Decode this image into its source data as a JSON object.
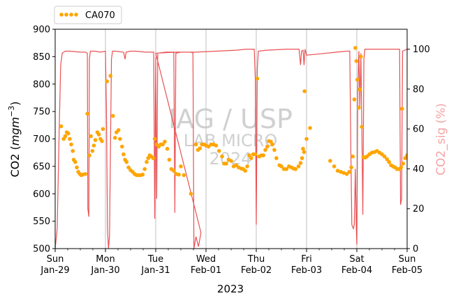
{
  "chart_data": {
    "type": "line",
    "xlabel": "2023",
    "ylabel_left": "CO2 (mgm⁻³)",
    "ylabel_left_main": "CO2 (",
    "ylabel_left_unit": "mgm",
    "ylabel_left_exp": "−3",
    "ylabel_left_close": ")",
    "ylabel_right": "CO2_sig (%)",
    "ylim_left": [
      500,
      900
    ],
    "ylim_right": [
      0,
      110
    ],
    "yticks_left": [
      500,
      550,
      600,
      650,
      700,
      750,
      800,
      850,
      900
    ],
    "yticks_right": [
      0,
      20,
      40,
      60,
      80,
      100
    ],
    "xticks": [
      {
        "day": 0,
        "line1": "Sun",
        "line2": "Jan-29"
      },
      {
        "day": 1,
        "line1": "Mon",
        "line2": "Jan-30"
      },
      {
        "day": 2,
        "line1": "Tue",
        "line2": "Jan-31"
      },
      {
        "day": 3,
        "line1": "Wed",
        "line2": "Feb-01"
      },
      {
        "day": 4,
        "line1": "Thu",
        "line2": "Feb-02"
      },
      {
        "day": 5,
        "line1": "Fri",
        "line2": "Feb-03"
      },
      {
        "day": 6,
        "line1": "Sat",
        "line2": "Feb-04"
      },
      {
        "day": 7,
        "line1": "Sun",
        "line2": "Feb-05"
      }
    ],
    "xlim": [
      0,
      7
    ],
    "grid": "vertical",
    "legend_position": "top-left-outside",
    "watermark": [
      "IAG / USP",
      "LAB MICRO",
      "2024"
    ],
    "colors": {
      "co2": "#ffa500",
      "sig": "#e8474a",
      "right_axis_label": "#f4a3a3",
      "watermark": "#c8c8c8",
      "grid": "#b0b0b0"
    },
    "series": [
      {
        "name": "CA070",
        "axis": "left",
        "style": "dots",
        "points": [
          [
            0.12,
            723
          ],
          [
            0.17,
            700
          ],
          [
            0.2,
            705
          ],
          [
            0.23,
            712
          ],
          [
            0.26,
            710
          ],
          [
            0.29,
            700
          ],
          [
            0.32,
            690
          ],
          [
            0.35,
            678
          ],
          [
            0.37,
            662
          ],
          [
            0.4,
            658
          ],
          [
            0.43,
            648
          ],
          [
            0.46,
            640
          ],
          [
            0.49,
            636
          ],
          [
            0.52,
            634
          ],
          [
            0.55,
            635
          ],
          [
            0.6,
            636
          ],
          [
            0.64,
            746
          ],
          [
            0.68,
            670
          ],
          [
            0.71,
            705
          ],
          [
            0.74,
            678
          ],
          [
            0.77,
            688
          ],
          [
            0.8,
            698
          ],
          [
            0.84,
            712
          ],
          [
            0.87,
            708
          ],
          [
            0.9,
            700
          ],
          [
            0.93,
            696
          ],
          [
            0.95,
            718
          ],
          [
            1.03,
            805
          ],
          [
            1.1,
            815
          ],
          [
            1.15,
            742
          ],
          [
            1.19,
            702
          ],
          [
            1.22,
            712
          ],
          [
            1.26,
            716
          ],
          [
            1.29,
            700
          ],
          [
            1.33,
            686
          ],
          [
            1.36,
            672
          ],
          [
            1.39,
            662
          ],
          [
            1.42,
            658
          ],
          [
            1.46,
            648
          ],
          [
            1.5,
            643
          ],
          [
            1.54,
            640
          ],
          [
            1.58,
            636
          ],
          [
            1.62,
            634
          ],
          [
            1.66,
            634
          ],
          [
            1.7,
            634
          ],
          [
            1.74,
            635
          ],
          [
            1.78,
            645
          ],
          [
            1.82,
            658
          ],
          [
            1.85,
            665
          ],
          [
            1.88,
            670
          ],
          [
            1.91,
            668
          ],
          [
            1.95,
            665
          ],
          [
            1.98,
            700
          ],
          [
            2.02,
            690
          ],
          [
            2.06,
            686
          ],
          [
            2.1,
            690
          ],
          [
            2.14,
            690
          ],
          [
            2.18,
            695
          ],
          [
            2.23,
            682
          ],
          [
            2.27,
            662
          ],
          [
            2.31,
            645
          ],
          [
            2.36,
            642
          ],
          [
            2.41,
            636
          ],
          [
            2.46,
            635
          ],
          [
            2.5,
            650
          ],
          [
            2.56,
            634
          ],
          [
            2.7,
            600
          ],
          [
            2.8,
            690
          ],
          [
            2.84,
            680
          ],
          [
            2.88,
            683
          ],
          [
            2.92,
            690
          ],
          [
            2.96,
            690
          ],
          [
            3.0,
            688
          ],
          [
            3.05,
            686
          ],
          [
            3.1,
            690
          ],
          [
            3.15,
            690
          ],
          [
            3.2,
            688
          ],
          [
            3.26,
            678
          ],
          [
            3.32,
            668
          ],
          [
            3.36,
            655
          ],
          [
            3.4,
            655
          ],
          [
            3.45,
            662
          ],
          [
            3.5,
            660
          ],
          [
            3.55,
            650
          ],
          [
            3.6,
            652
          ],
          [
            3.65,
            648
          ],
          [
            3.7,
            646
          ],
          [
            3.74,
            645
          ],
          [
            3.78,
            642
          ],
          [
            3.82,
            650
          ],
          [
            3.86,
            670
          ],
          [
            3.9,
            665
          ],
          [
            3.94,
            672
          ],
          [
            3.98,
            672
          ],
          [
            4.02,
            810
          ],
          [
            4.06,
            668
          ],
          [
            4.1,
            670
          ],
          [
            4.14,
            670
          ],
          [
            4.18,
            680
          ],
          [
            4.22,
            686
          ],
          [
            4.25,
            696
          ],
          [
            4.29,
            695
          ],
          [
            4.32,
            690
          ],
          [
            4.36,
            680
          ],
          [
            4.4,
            665
          ],
          [
            4.46,
            652
          ],
          [
            4.5,
            650
          ],
          [
            4.55,
            645
          ],
          [
            4.6,
            645
          ],
          [
            4.65,
            650
          ],
          [
            4.7,
            648
          ],
          [
            4.74,
            646
          ],
          [
            4.78,
            645
          ],
          [
            4.84,
            650
          ],
          [
            4.88,
            656
          ],
          [
            4.91,
            665
          ],
          [
            4.93,
            682
          ],
          [
            4.95,
            676
          ],
          [
            4.96,
            787
          ],
          [
            5.0,
            700
          ],
          [
            5.07,
            720
          ],
          [
            5.47,
            660
          ],
          [
            5.55,
            650
          ],
          [
            5.62,
            642
          ],
          [
            5.68,
            640
          ],
          [
            5.74,
            638
          ],
          [
            5.8,
            636
          ],
          [
            5.85,
            640
          ],
          [
            5.89,
            648
          ],
          [
            5.92,
            668
          ],
          [
            5.95,
            772
          ],
          [
            5.97,
            866
          ],
          [
            5.99,
            842
          ],
          [
            6.01,
            808
          ],
          [
            6.04,
            757
          ],
          [
            6.06,
            790
          ],
          [
            6.08,
            850
          ],
          [
            6.1,
            722
          ],
          [
            6.13,
            667
          ],
          [
            6.17,
            666
          ],
          [
            6.2,
            668
          ],
          [
            6.25,
            672
          ],
          [
            6.3,
            675
          ],
          [
            6.35,
            676
          ],
          [
            6.4,
            678
          ],
          [
            6.45,
            675
          ],
          [
            6.5,
            672
          ],
          [
            6.55,
            668
          ],
          [
            6.6,
            663
          ],
          [
            6.64,
            658
          ],
          [
            6.68,
            652
          ],
          [
            6.72,
            650
          ],
          [
            6.76,
            648
          ],
          [
            6.8,
            645
          ],
          [
            6.84,
            645
          ],
          [
            6.88,
            648
          ],
          [
            6.9,
            755
          ],
          [
            6.92,
            655
          ],
          [
            6.96,
            665
          ],
          [
            7.0,
            670
          ],
          [
            7.04,
            675
          ],
          [
            7.08,
            678
          ]
        ]
      },
      {
        "name": "CO2_sig",
        "axis": "right",
        "style": "line",
        "points": [
          [
            0.0,
            0
          ],
          [
            0.04,
            10
          ],
          [
            0.08,
            60
          ],
          [
            0.11,
            92
          ],
          [
            0.14,
            98
          ],
          [
            0.2,
            99
          ],
          [
            0.3,
            99
          ],
          [
            0.5,
            98.5
          ],
          [
            0.6,
            98.5
          ],
          [
            0.64,
            98
          ],
          [
            0.65,
            20
          ],
          [
            0.67,
            16
          ],
          [
            0.68,
            95
          ],
          [
            0.7,
            99
          ],
          [
            0.8,
            99
          ],
          [
            0.9,
            98.5
          ],
          [
            1.0,
            99
          ],
          [
            1.02,
            70
          ],
          [
            1.04,
            10
          ],
          [
            1.06,
            0
          ],
          [
            1.08,
            6
          ],
          [
            1.1,
            50
          ],
          [
            1.12,
            95
          ],
          [
            1.14,
            99
          ],
          [
            1.2,
            99
          ],
          [
            1.36,
            98.5
          ],
          [
            1.39,
            95
          ],
          [
            1.41,
            98.5
          ],
          [
            1.5,
            99
          ],
          [
            1.6,
            99
          ],
          [
            1.8,
            98.5
          ],
          [
            1.96,
            98.5
          ],
          [
            1.98,
            15
          ],
          [
            2.0,
            96
          ],
          [
            2.02,
            25
          ],
          [
            2.04,
            98
          ],
          [
            2.2,
            98.5
          ],
          [
            2.3,
            98.5
          ],
          [
            2.36,
            98.5
          ],
          [
            2.38,
            18
          ],
          [
            2.4,
            98
          ],
          [
            2.5,
            98.5
          ],
          [
            2.6,
            98.5
          ],
          [
            2.7,
            98.5
          ],
          [
            2.74,
            98
          ],
          [
            2.76,
            0
          ],
          [
            2.8,
            6
          ],
          [
            2.85,
            1
          ],
          [
            2.9,
            8
          ],
          [
            2.0,
            98
          ],
          [
            2.4,
            98.5
          ],
          [
            2.8,
            98.5
          ],
          [
            3.2,
            99
          ],
          [
            3.6,
            99.5
          ],
          [
            3.8,
            100
          ],
          [
            3.96,
            100
          ],
          [
            3.98,
            85
          ],
          [
            4.0,
            12
          ],
          [
            4.02,
            90
          ],
          [
            4.04,
            99
          ],
          [
            4.2,
            99.5
          ],
          [
            4.6,
            100
          ],
          [
            4.85,
            100
          ],
          [
            4.88,
            92
          ],
          [
            4.9,
            99
          ],
          [
            4.93,
            99.5
          ],
          [
            4.95,
            92
          ],
          [
            4.97,
            100
          ],
          [
            5.0,
            97
          ],
          [
            5.2,
            97.5
          ],
          [
            5.6,
            98.5
          ],
          [
            5.8,
            99
          ],
          [
            5.86,
            99
          ],
          [
            5.88,
            50
          ],
          [
            5.9,
            12
          ],
          [
            5.93,
            10
          ],
          [
            5.95,
            12
          ],
          [
            5.97,
            40
          ],
          [
            5.99,
            10
          ],
          [
            6.0,
            2
          ],
          [
            6.02,
            80
          ],
          [
            6.04,
            99
          ],
          [
            6.06,
            70
          ],
          [
            6.08,
            98
          ],
          [
            6.1,
            60
          ],
          [
            6.12,
            17
          ],
          [
            6.14,
            95
          ],
          [
            6.16,
            100
          ],
          [
            6.4,
            100
          ],
          [
            6.6,
            100
          ],
          [
            6.8,
            100
          ],
          [
            6.85,
            100
          ],
          [
            6.87,
            22
          ],
          [
            6.89,
            25
          ],
          [
            6.91,
            99
          ],
          [
            7.0,
            100
          ],
          [
            7.1,
            100
          ]
        ]
      }
    ]
  }
}
